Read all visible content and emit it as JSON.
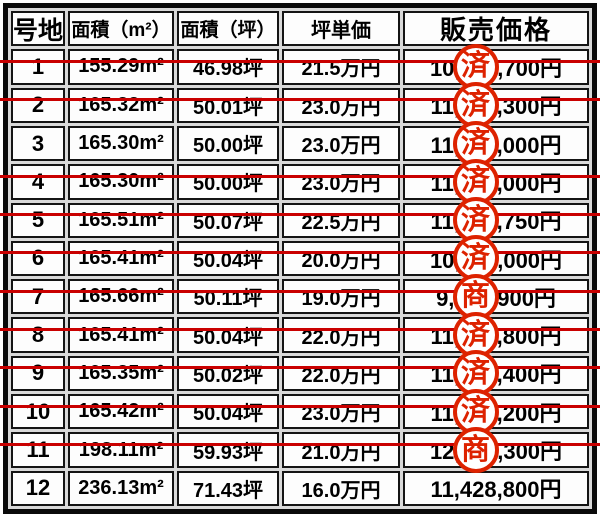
{
  "table": {
    "headers": [
      "号地",
      "面積（m²）",
      "面積（坪）",
      "坪単価",
      "販売価格"
    ],
    "rows": [
      {
        "lot": "1",
        "sqm": "155.29m²",
        "tsubo": "46.98坪",
        "unit": "21.5万円",
        "price": "10,100,700円",
        "sold": true,
        "stamp": "済"
      },
      {
        "lot": "2",
        "sqm": "165.32m²",
        "tsubo": "50.01坪",
        "unit": "23.0万円",
        "price": "11,502,300円",
        "sold": true,
        "stamp": "済"
      },
      {
        "lot": "3",
        "sqm": "165.30m²",
        "tsubo": "50.00坪",
        "unit": "23.0万円",
        "price": "11,500,000円",
        "sold": false,
        "stamp": "済"
      },
      {
        "lot": "4",
        "sqm": "165.30m²",
        "tsubo": "50.00坪",
        "unit": "23.0万円",
        "price": "11,500,000円",
        "sold": true,
        "stamp": "済"
      },
      {
        "lot": "5",
        "sqm": "165.51m²",
        "tsubo": "50.07坪",
        "unit": "22.5万円",
        "price": "11,265,750円",
        "sold": true,
        "stamp": "済"
      },
      {
        "lot": "6",
        "sqm": "165.41m²",
        "tsubo": "50.04坪",
        "unit": "20.0万円",
        "price": "10,008,000円",
        "sold": true,
        "stamp": "済"
      },
      {
        "lot": "7",
        "sqm": "165.66m²",
        "tsubo": "50.11坪",
        "unit": "19.0万円",
        "price": "9,520,900円",
        "sold": true,
        "stamp": "商"
      },
      {
        "lot": "8",
        "sqm": "165.41m²",
        "tsubo": "50.04坪",
        "unit": "22.0万円",
        "price": "11,008,800円",
        "sold": true,
        "stamp": "済"
      },
      {
        "lot": "9",
        "sqm": "165.35m²",
        "tsubo": "50.02坪",
        "unit": "22.0万円",
        "price": "11,004,400円",
        "sold": true,
        "stamp": "済"
      },
      {
        "lot": "10",
        "sqm": "165.42m²",
        "tsubo": "50.04坪",
        "unit": "23.0万円",
        "price": "11,509,200円",
        "sold": true,
        "stamp": "済"
      },
      {
        "lot": "11",
        "sqm": "198.11m²",
        "tsubo": "59.93坪",
        "unit": "21.0万円",
        "price": "12,585,300円",
        "sold": true,
        "stamp": "商"
      },
      {
        "lot": "12",
        "sqm": "236.13m²",
        "tsubo": "71.43坪",
        "unit": "16.0万円",
        "price": "11,428,800円",
        "sold": false,
        "stamp": null
      }
    ]
  },
  "colors": {
    "strike": "#c90000",
    "stamp": "#dd2200"
  }
}
